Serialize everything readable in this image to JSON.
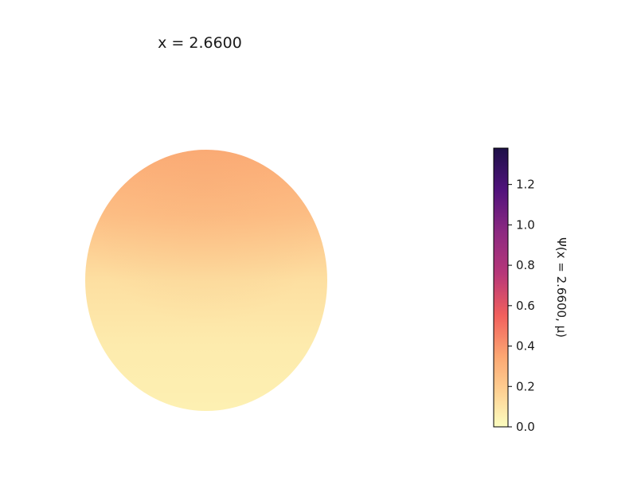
{
  "chart_data": {
    "type": "heatmap",
    "title": "x = 2.6600",
    "projection": "disk",
    "colormap": "magma_r",
    "field_description": "sphere projection, darker peach near top fading to pale yellow toward bottom",
    "field_samples": {
      "rows": [
        "top",
        "upper",
        "middle",
        "lower",
        "bottom"
      ],
      "values": [
        0.33,
        0.25,
        0.12,
        0.07,
        0.05
      ]
    },
    "colorbar": {
      "label": "Ψ(x = 2.6600, μ)",
      "range": [
        0.0,
        1.38
      ],
      "ticks": [
        0.0,
        0.2,
        0.4,
        0.6,
        0.8,
        1.0,
        1.2
      ],
      "tick_labels": [
        "0.0",
        "0.2",
        "0.4",
        "0.6",
        "0.8",
        "1.0",
        "1.2"
      ]
    }
  }
}
